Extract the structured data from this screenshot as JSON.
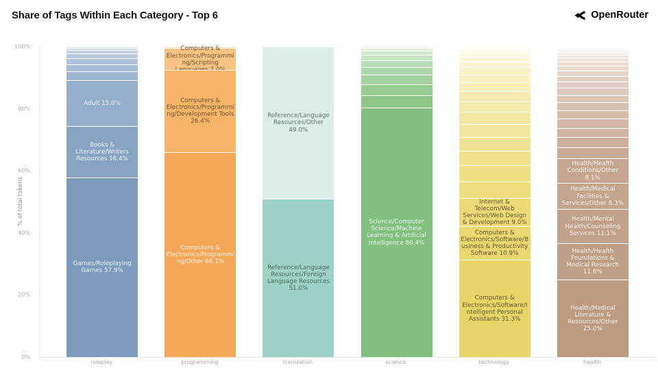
{
  "header": {
    "title": "Share of Tags Within Each Category - Top 6",
    "brand": "OpenRouter"
  },
  "chart_data": {
    "type": "bar",
    "stacked": true,
    "title": "Share of Tags Within Each Category - Top 6",
    "xlabel": "",
    "ylabel": "% of total tokens",
    "ylim": [
      0,
      100
    ],
    "grid": false,
    "legend": "none",
    "yticks": [
      {
        "value": 0,
        "label": "0%"
      },
      {
        "value": 20,
        "label": "20%"
      },
      {
        "value": 40,
        "label": "40%"
      },
      {
        "value": 60,
        "label": "60%"
      },
      {
        "value": 80,
        "label": "80%"
      },
      {
        "value": 100,
        "label": "100%"
      }
    ],
    "categories": [
      "roleplay",
      "programming",
      "translation",
      "science",
      "technology",
      "health"
    ],
    "bars": [
      {
        "category": "roleplay",
        "segments": [
          {
            "label": "Games/Roleplaying Games",
            "pct": "57.9%",
            "value": 57.9,
            "color": "#7d9bbe",
            "text_color": "#edf2f8"
          },
          {
            "label": "Books & Literature/Writers Resources",
            "pct": "16.4%",
            "value": 16.4,
            "color": "#88a4c5",
            "text_color": "#edf2f8"
          },
          {
            "label": "Adult",
            "pct": "15.0%",
            "value": 15.0,
            "color": "#93adca",
            "text_color": "#edf2f8"
          }
        ],
        "unlabeled_top": {
          "total_value": 10.7,
          "stripe_count": 7,
          "color_from": "#9eb6d1",
          "color_to": "#d3ddeb"
        }
      },
      {
        "category": "programming",
        "segments": [
          {
            "label": "Computers & Electronics/Programming/Other",
            "pct": "66.1%",
            "value": 66.1,
            "color": "#f5a758",
            "text_color": "#fdf1e2"
          },
          {
            "label": "Computers & Electronics/Programming/Development Tools",
            "pct": "26.4%",
            "value": 26.4,
            "color": "#f8b469",
            "text_color": "#6f5530"
          },
          {
            "label": "Computers & Electronics/Programming/Scripting Languages",
            "pct": "7.0%",
            "value": 7.0,
            "color": "#fac285",
            "text_color": "#6f5530"
          }
        ],
        "unlabeled_top": {
          "total_value": 0.5,
          "stripe_count": 1,
          "color_from": "#fcd9b4",
          "color_to": "#fde3c6"
        }
      },
      {
        "category": "translation",
        "segments": [
          {
            "label": "Reference/Language Resources/Foreign Language Resources",
            "pct": "51.0%",
            "value": 51.0,
            "color": "#9dd0c7",
            "text_color": "#4f6b66"
          },
          {
            "label": "Reference/Language Resources/Other",
            "pct": "49.0%",
            "value": 49.0,
            "color": "#dceeea",
            "text_color": "#5e7672"
          }
        ],
        "unlabeled_top": {
          "total_value": 0,
          "stripe_count": 0,
          "color_from": "#dceeea",
          "color_to": "#ffffff"
        }
      },
      {
        "category": "science",
        "segments": [
          {
            "label": "Science/Computer Science/Machine Learning & Artificial Intelligence",
            "pct": "80.4%",
            "value": 80.4,
            "color": "#81c07d",
            "text_color": "#f0f8ef"
          }
        ],
        "unlabeled_top": {
          "total_value": 19.6,
          "stripe_count": 9,
          "color_from": "#8bc687",
          "color_to": "#e9f4e7"
        }
      },
      {
        "category": "technology",
        "segments": [
          {
            "label": "Computers & Electronics/Software/Intelligent Personal Assistants",
            "pct": "31.3%",
            "value": 31.3,
            "color": "#e9d466",
            "text_color": "#645831"
          },
          {
            "label": "Computers & Electronics/Software/Business & Productivity Software",
            "pct": "10.9%",
            "value": 10.9,
            "color": "#ebd76f",
            "text_color": "#645831"
          },
          {
            "label": "Internet & Telecom/Web Services/Web Design & Development",
            "pct": "9.0%",
            "value": 9.0,
            "color": "#edda77",
            "text_color": "#645831"
          }
        ],
        "unlabeled_top": {
          "total_value": 48.8,
          "stripe_count": 17,
          "color_from": "#eedd7e",
          "color_to": "#fffef5"
        }
      },
      {
        "category": "health",
        "segments": [
          {
            "label": "Health/Medical Literature & Resources/Other",
            "pct": "25.0%",
            "value": 25.0,
            "color": "#bd9b81",
            "text_color": "#f7f2ed"
          },
          {
            "label": "Health/Health Foundations & Medical Research",
            "pct": "11.6%",
            "value": 11.6,
            "color": "#bf9e86",
            "text_color": "#f7f2ed"
          },
          {
            "label": "Health/Mental Health/Counseling Services",
            "pct": "11.1%",
            "value": 11.1,
            "color": "#c1a189",
            "text_color": "#f7f2ed"
          },
          {
            "label": "Health/Medical Facilities & Services/Other",
            "pct": "8.3%",
            "value": 8.3,
            "color": "#c3a48d",
            "text_color": "#f7f2ed"
          },
          {
            "label": "Health/Health Conditions/Other",
            "pct": "8.1%",
            "value": 8.1,
            "color": "#c5a791",
            "text_color": "#f7f2ed"
          }
        ],
        "unlabeled_top": {
          "total_value": 35.9,
          "stripe_count": 20,
          "color_from": "#c9ac98",
          "color_to": "#fefcfa"
        }
      }
    ]
  }
}
